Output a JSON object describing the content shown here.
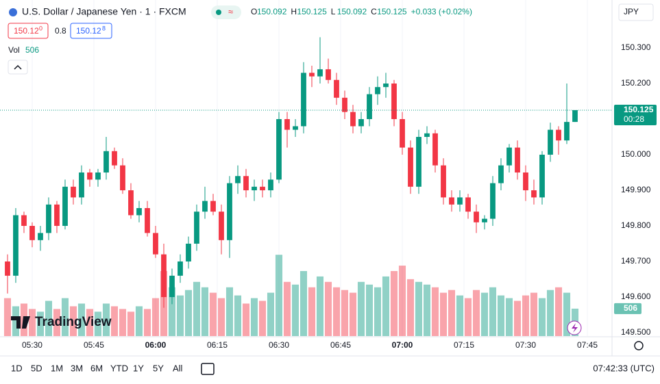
{
  "header": {
    "symbol": "U.S. Dollar / Japanese Yen · 1 · FXCM",
    "open_label": "O",
    "high_label": "H",
    "low_label": "L",
    "close_label": "C",
    "change": "+0.033 (+0.02%)",
    "bid": "150.12",
    "bid_pip": "0",
    "spread": "0.8",
    "ask": "150.12",
    "ask_pip": "8",
    "vol_label": "Vol",
    "currency": "JPY",
    "countdown": "00:28",
    "logo": "TradingView"
  },
  "toolbar": {
    "ranges": [
      "1D",
      "5D",
      "1M",
      "3M",
      "6M",
      "YTD",
      "1Y",
      "5Y",
      "All"
    ],
    "clock": "07:42:33 (UTC)"
  },
  "chart_data": {
    "type": "candlestick",
    "x": [
      324,
      326,
      328,
      330,
      332,
      334,
      336,
      338,
      340,
      342,
      344,
      346,
      348,
      350,
      352,
      354,
      356,
      358,
      360,
      362,
      364,
      366,
      368,
      370,
      372,
      374,
      376,
      378,
      380,
      382,
      384,
      386,
      388,
      390,
      392,
      394,
      396,
      398,
      400,
      402,
      404,
      406,
      408,
      410,
      412,
      414,
      416,
      418,
      420,
      422,
      424,
      426,
      428,
      430,
      432,
      434,
      436,
      438,
      440,
      442,
      444,
      446,
      448,
      450,
      452,
      454,
      456,
      458,
      460,
      462
    ],
    "open": [
      149.7,
      149.66,
      149.83,
      149.8,
      149.76,
      149.78,
      149.86,
      149.8,
      149.91,
      149.88,
      149.95,
      149.93,
      149.95,
      150.01,
      149.97,
      149.9,
      149.83,
      149.85,
      149.78,
      149.72,
      149.6,
      149.66,
      149.7,
      149.75,
      149.84,
      149.87,
      149.84,
      149.76,
      149.92,
      149.94,
      149.9,
      149.91,
      149.9,
      149.93,
      150.1,
      150.07,
      150.08,
      150.23,
      150.22,
      150.24,
      150.21,
      150.16,
      150.12,
      150.08,
      150.1,
      150.17,
      150.19,
      150.2,
      150.1,
      150.02,
      149.91,
      150.05,
      150.06,
      149.97,
      149.88,
      149.86,
      149.88,
      149.84,
      149.81,
      149.82,
      149.92,
      149.97,
      150.02,
      149.95,
      149.9,
      149.88,
      150.0,
      150.07,
      150.04,
      150.092
    ],
    "high": [
      149.72,
      149.85,
      149.84,
      149.81,
      149.8,
      149.88,
      149.87,
      149.93,
      149.93,
      149.97,
      149.96,
      149.96,
      150.05,
      150.02,
      149.99,
      149.92,
      149.87,
      149.87,
      149.8,
      149.75,
      149.68,
      149.72,
      149.77,
      149.86,
      149.91,
      149.89,
      149.86,
      149.94,
      149.97,
      149.96,
      149.93,
      149.93,
      149.95,
      150.12,
      150.12,
      150.1,
      150.26,
      150.25,
      150.33,
      150.27,
      150.23,
      150.18,
      150.14,
      150.12,
      150.19,
      150.22,
      150.23,
      150.21,
      150.12,
      150.04,
      150.07,
      150.08,
      150.07,
      149.99,
      149.9,
      149.9,
      149.89,
      149.86,
      149.83,
      149.94,
      149.99,
      150.03,
      150.04,
      149.97,
      149.93,
      150.01,
      150.09,
      150.08,
      150.2,
      150.125
    ],
    "low": [
      149.61,
      149.64,
      149.78,
      149.74,
      149.73,
      149.76,
      149.78,
      149.79,
      149.86,
      149.86,
      149.91,
      149.91,
      149.93,
      149.96,
      149.89,
      149.82,
      149.81,
      149.77,
      149.71,
      149.57,
      149.58,
      149.64,
      149.68,
      149.73,
      149.82,
      149.83,
      149.72,
      149.71,
      149.89,
      149.88,
      149.87,
      149.88,
      149.88,
      149.92,
      150.02,
      150.05,
      150.06,
      150.19,
      150.2,
      150.2,
      150.14,
      150.1,
      150.06,
      150.06,
      150.08,
      150.14,
      150.16,
      150.08,
      150.0,
      149.89,
      149.89,
      150.03,
      149.95,
      149.86,
      149.84,
      149.84,
      149.82,
      149.78,
      149.79,
      149.8,
      149.9,
      149.95,
      149.93,
      149.87,
      149.86,
      149.86,
      149.98,
      150.0,
      150.03,
      150.092
    ],
    "close": [
      149.66,
      149.83,
      149.8,
      149.76,
      149.78,
      149.86,
      149.8,
      149.91,
      149.88,
      149.95,
      149.93,
      149.95,
      150.01,
      149.97,
      149.9,
      149.83,
      149.85,
      149.78,
      149.72,
      149.6,
      149.66,
      149.7,
      149.75,
      149.84,
      149.87,
      149.84,
      149.76,
      149.92,
      149.94,
      149.9,
      149.91,
      149.9,
      149.93,
      150.1,
      150.07,
      150.08,
      150.23,
      150.22,
      150.24,
      150.21,
      150.16,
      150.12,
      150.08,
      150.1,
      150.17,
      150.19,
      150.2,
      150.1,
      150.02,
      149.91,
      150.05,
      150.06,
      149.97,
      149.88,
      149.86,
      149.88,
      149.84,
      149.81,
      149.82,
      149.92,
      149.97,
      150.02,
      149.95,
      149.9,
      149.88,
      150.0,
      150.07,
      150.04,
      150.092,
      150.125
    ],
    "volume": [
      700,
      550,
      600,
      500,
      450,
      650,
      500,
      700,
      550,
      600,
      500,
      450,
      600,
      550,
      500,
      450,
      550,
      500,
      700,
      1200,
      900,
      750,
      850,
      1000,
      900,
      800,
      700,
      900,
      750,
      600,
      700,
      650,
      800,
      1500,
      1000,
      950,
      1200,
      900,
      1100,
      1000,
      900,
      850,
      800,
      1000,
      950,
      900,
      1100,
      1200,
      1300,
      1050,
      1000,
      950,
      900,
      800,
      850,
      750,
      700,
      850,
      800,
      900,
      750,
      700,
      650,
      750,
      800,
      700,
      850,
      900,
      800,
      506
    ],
    "up_color": "#089981",
    "down_color": "#f23645",
    "ylim": [
      149.4904,
      150.4346
    ],
    "yticks": [
      {
        "value": 149.5,
        "label": "149.500"
      },
      {
        "value": 149.6,
        "label": "149.600"
      },
      {
        "value": 149.7,
        "label": "149.700"
      },
      {
        "value": 149.8,
        "label": "149.800"
      },
      {
        "value": 149.9,
        "label": "149.900"
      },
      {
        "value": 150.0,
        "label": "150.000"
      },
      {
        "value": 150.1,
        "label": "150.100"
      },
      {
        "value": 150.2,
        "label": "150.200"
      },
      {
        "value": 150.3,
        "label": "150.300"
      }
    ],
    "xlim": [
      322.17,
      471
    ],
    "xticks": [
      {
        "value": 330,
        "label": "05:30"
      },
      {
        "value": 345,
        "label": "05:45"
      },
      {
        "value": 360,
        "label": "06:00",
        "bold": true
      },
      {
        "value": 375,
        "label": "06:15"
      },
      {
        "value": 390,
        "label": "06:30"
      },
      {
        "value": 405,
        "label": "06:45"
      },
      {
        "value": 420,
        "label": "07:00",
        "bold": true
      },
      {
        "value": 435,
        "label": "07:15"
      },
      {
        "value": 450,
        "label": "07:30"
      },
      {
        "value": 465,
        "label": "07:45"
      }
    ],
    "vlim": [
      0,
      6200
    ],
    "grid": true
  }
}
